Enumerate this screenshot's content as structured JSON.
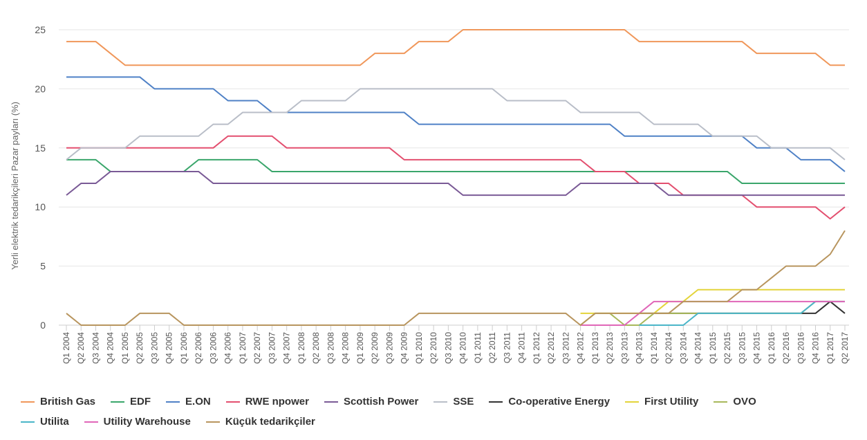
{
  "chart_data": {
    "type": "line",
    "ylabel": "Yerli elektrik tedarikçileri Pazar payları (%)",
    "ylim": [
      0,
      25
    ],
    "yticks": [
      0,
      5,
      10,
      15,
      20,
      25
    ],
    "grid": "horizontal",
    "legend_position": "bottom",
    "categories": [
      "Q1 2004",
      "Q2 2004",
      "Q3 2004",
      "Q4 2004",
      "Q1 2005",
      "Q2 2005",
      "Q3 2005",
      "Q4 2005",
      "Q1 2006",
      "Q2 2006",
      "Q3 2006",
      "Q4 2006",
      "Q1 2007",
      "Q2 2007",
      "Q3 2007",
      "Q4 2007",
      "Q1 2008",
      "Q2 2008",
      "Q3 2008",
      "Q4 2008",
      "Q1 2009",
      "Q2 2009",
      "Q3 2009",
      "Q4 2009",
      "Q1 2010",
      "Q2 2010",
      "Q3 2010",
      "Q4 2010",
      "Q1 2011",
      "Q2 2011",
      "Q3 2011",
      "Q4 2011",
      "Q1 2012",
      "Q2 2012",
      "Q3 2012",
      "Q4 2012",
      "Q1 2013",
      "Q2 2013",
      "Q3 2013",
      "Q4 2013",
      "Q1 2014",
      "Q2 2014",
      "Q3 2014",
      "Q4 2014",
      "Q1 2015",
      "Q2 2015",
      "Q3 2015",
      "Q4 2015",
      "Q1 2016",
      "Q2 2016",
      "Q3 2016",
      "Q4 2016",
      "Q1 2017",
      "Q2 2017"
    ],
    "series": [
      {
        "name": "British Gas",
        "color": "#f0975a",
        "values": [
          24,
          24,
          24,
          23,
          22,
          22,
          22,
          22,
          22,
          22,
          22,
          22,
          22,
          22,
          22,
          22,
          22,
          22,
          22,
          22,
          22,
          23,
          23,
          23,
          24,
          24,
          24,
          25,
          25,
          25,
          25,
          25,
          25,
          25,
          25,
          25,
          25,
          25,
          25,
          24,
          24,
          24,
          24,
          24,
          24,
          24,
          24,
          23,
          23,
          23,
          23,
          23,
          22,
          22
        ]
      },
      {
        "name": "EDF",
        "color": "#3aa66b",
        "values": [
          14,
          14,
          14,
          13,
          13,
          13,
          13,
          13,
          13,
          14,
          14,
          14,
          14,
          14,
          13,
          13,
          13,
          13,
          13,
          13,
          13,
          13,
          13,
          13,
          13,
          13,
          13,
          13,
          13,
          13,
          13,
          13,
          13,
          13,
          13,
          13,
          13,
          13,
          13,
          13,
          13,
          13,
          13,
          13,
          13,
          13,
          12,
          12,
          12,
          12,
          12,
          12,
          12,
          12
        ]
      },
      {
        "name": "E.ON",
        "color": "#4f81c6",
        "values": [
          21,
          21,
          21,
          21,
          21,
          21,
          20,
          20,
          20,
          20,
          20,
          19,
          19,
          19,
          18,
          18,
          18,
          18,
          18,
          18,
          18,
          18,
          18,
          18,
          17,
          17,
          17,
          17,
          17,
          17,
          17,
          17,
          17,
          17,
          17,
          17,
          17,
          17,
          16,
          16,
          16,
          16,
          16,
          16,
          16,
          16,
          16,
          15,
          15,
          15,
          14,
          14,
          14,
          13
        ]
      },
      {
        "name": "RWE npower",
        "color": "#e34f6f",
        "values": [
          15,
          15,
          15,
          15,
          15,
          15,
          15,
          15,
          15,
          15,
          15,
          16,
          16,
          16,
          16,
          15,
          15,
          15,
          15,
          15,
          15,
          15,
          15,
          14,
          14,
          14,
          14,
          14,
          14,
          14,
          14,
          14,
          14,
          14,
          14,
          14,
          13,
          13,
          13,
          12,
          12,
          12,
          11,
          11,
          11,
          11,
          11,
          10,
          10,
          10,
          10,
          10,
          9,
          10
        ]
      },
      {
        "name": "Scottish Power",
        "color": "#7a5a96",
        "values": [
          11,
          12,
          12,
          13,
          13,
          13,
          13,
          13,
          13,
          13,
          12,
          12,
          12,
          12,
          12,
          12,
          12,
          12,
          12,
          12,
          12,
          12,
          12,
          12,
          12,
          12,
          12,
          11,
          11,
          11,
          11,
          11,
          11,
          11,
          11,
          12,
          12,
          12,
          12,
          12,
          12,
          11,
          11,
          11,
          11,
          11,
          11,
          11,
          11,
          11,
          11,
          11,
          11,
          11
        ]
      },
      {
        "name": "SSE",
        "color": "#b9bec8",
        "values": [
          14,
          15,
          15,
          15,
          15,
          16,
          16,
          16,
          16,
          16,
          17,
          17,
          18,
          18,
          18,
          18,
          19,
          19,
          19,
          19,
          20,
          20,
          20,
          20,
          20,
          20,
          20,
          20,
          20,
          20,
          19,
          19,
          19,
          19,
          19,
          18,
          18,
          18,
          18,
          18,
          17,
          17,
          17,
          17,
          16,
          16,
          16,
          16,
          15,
          15,
          15,
          15,
          15,
          14
        ]
      },
      {
        "name": "Co-operative Energy",
        "color": "#333333",
        "values": [
          null,
          null,
          null,
          null,
          null,
          null,
          null,
          null,
          null,
          null,
          null,
          null,
          null,
          null,
          null,
          null,
          null,
          null,
          null,
          null,
          null,
          null,
          null,
          null,
          null,
          null,
          null,
          null,
          null,
          null,
          null,
          null,
          null,
          null,
          null,
          null,
          null,
          null,
          null,
          1,
          1,
          1,
          1,
          1,
          1,
          1,
          1,
          1,
          1,
          1,
          1,
          1,
          2,
          1
        ]
      },
      {
        "name": "First Utility",
        "color": "#e3d43a",
        "values": [
          null,
          null,
          null,
          null,
          null,
          null,
          null,
          null,
          null,
          null,
          null,
          null,
          null,
          null,
          null,
          null,
          null,
          null,
          null,
          null,
          null,
          null,
          null,
          null,
          null,
          null,
          null,
          null,
          null,
          null,
          null,
          null,
          null,
          null,
          null,
          1,
          1,
          1,
          1,
          1,
          1,
          2,
          2,
          3,
          3,
          3,
          3,
          3,
          3,
          3,
          3,
          3,
          3,
          3
        ]
      },
      {
        "name": "OVO",
        "color": "#a8b85a",
        "values": [
          null,
          null,
          null,
          null,
          null,
          null,
          null,
          null,
          null,
          null,
          null,
          null,
          null,
          null,
          null,
          null,
          null,
          null,
          null,
          null,
          null,
          null,
          null,
          null,
          null,
          null,
          null,
          null,
          null,
          null,
          null,
          null,
          null,
          null,
          null,
          0,
          1,
          1,
          0,
          0,
          1,
          1,
          1,
          1,
          1,
          1,
          1,
          1,
          1,
          1,
          1,
          2,
          2,
          2
        ]
      },
      {
        "name": "Utilita",
        "color": "#4ab5c8",
        "values": [
          null,
          null,
          null,
          null,
          null,
          null,
          null,
          null,
          null,
          null,
          null,
          null,
          null,
          null,
          null,
          null,
          null,
          null,
          null,
          null,
          null,
          null,
          null,
          null,
          null,
          null,
          null,
          null,
          null,
          null,
          null,
          null,
          null,
          null,
          null,
          null,
          null,
          null,
          null,
          0,
          0,
          0,
          0,
          1,
          1,
          1,
          1,
          1,
          1,
          1,
          1,
          2,
          2,
          2
        ]
      },
      {
        "name": "Utility Warehouse",
        "color": "#e066b8",
        "values": [
          null,
          null,
          null,
          null,
          null,
          null,
          null,
          null,
          null,
          null,
          null,
          null,
          null,
          null,
          null,
          null,
          null,
          null,
          null,
          null,
          null,
          null,
          null,
          null,
          null,
          null,
          null,
          null,
          null,
          null,
          null,
          null,
          null,
          null,
          null,
          0,
          0,
          0,
          0,
          1,
          2,
          2,
          2,
          2,
          2,
          2,
          2,
          2,
          2,
          2,
          2,
          2,
          2,
          2
        ]
      },
      {
        "name": "Küçük tedarikçiler",
        "color": "#b8955e",
        "values": [
          1,
          0,
          0,
          0,
          0,
          1,
          1,
          1,
          0,
          0,
          0,
          0,
          0,
          0,
          0,
          0,
          0,
          0,
          0,
          0,
          0,
          0,
          0,
          0,
          1,
          1,
          1,
          1,
          1,
          1,
          1,
          1,
          1,
          1,
          1,
          0,
          1,
          1,
          1,
          1,
          1,
          1,
          2,
          2,
          2,
          2,
          3,
          3,
          4,
          5,
          5,
          5,
          6,
          8
        ]
      }
    ]
  }
}
